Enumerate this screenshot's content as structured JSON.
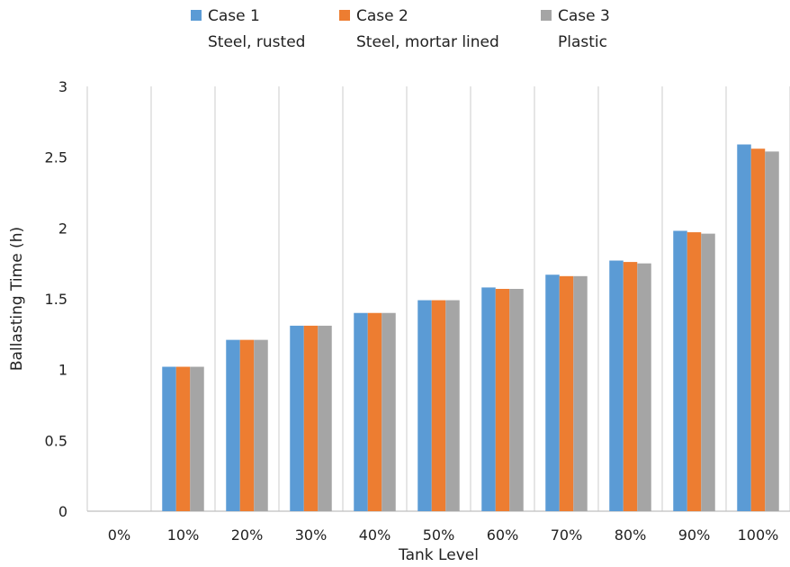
{
  "chart_data": {
    "type": "bar",
    "title": "",
    "xlabel": "Tank Level",
    "ylabel": "Ballasting Time (h)",
    "ylim": [
      0,
      3
    ],
    "yticks": [
      "0",
      "0.5",
      "1",
      "1.5",
      "2",
      "2.5",
      "3"
    ],
    "categories": [
      "0%",
      "10%",
      "20%",
      "30%",
      "40%",
      "50%",
      "60%",
      "70%",
      "80%",
      "90%",
      "100%"
    ],
    "grid": "vertical",
    "legend_position": "top",
    "series": [
      {
        "name": "Case 1",
        "subtitle": "Steel, rusted",
        "color": "#5b9bd5",
        "values": [
          0,
          1.02,
          1.21,
          1.31,
          1.4,
          1.49,
          1.58,
          1.67,
          1.77,
          1.98,
          2.59
        ]
      },
      {
        "name": "Case 2",
        "subtitle": "Steel, mortar lined",
        "color": "#ed7d31",
        "values": [
          0,
          1.02,
          1.21,
          1.31,
          1.4,
          1.49,
          1.57,
          1.66,
          1.76,
          1.97,
          2.56
        ]
      },
      {
        "name": "Case 3",
        "subtitle": "Plastic",
        "color": "#a5a5a5",
        "values": [
          0,
          1.02,
          1.21,
          1.31,
          1.4,
          1.49,
          1.57,
          1.66,
          1.75,
          1.96,
          2.54
        ]
      }
    ]
  }
}
